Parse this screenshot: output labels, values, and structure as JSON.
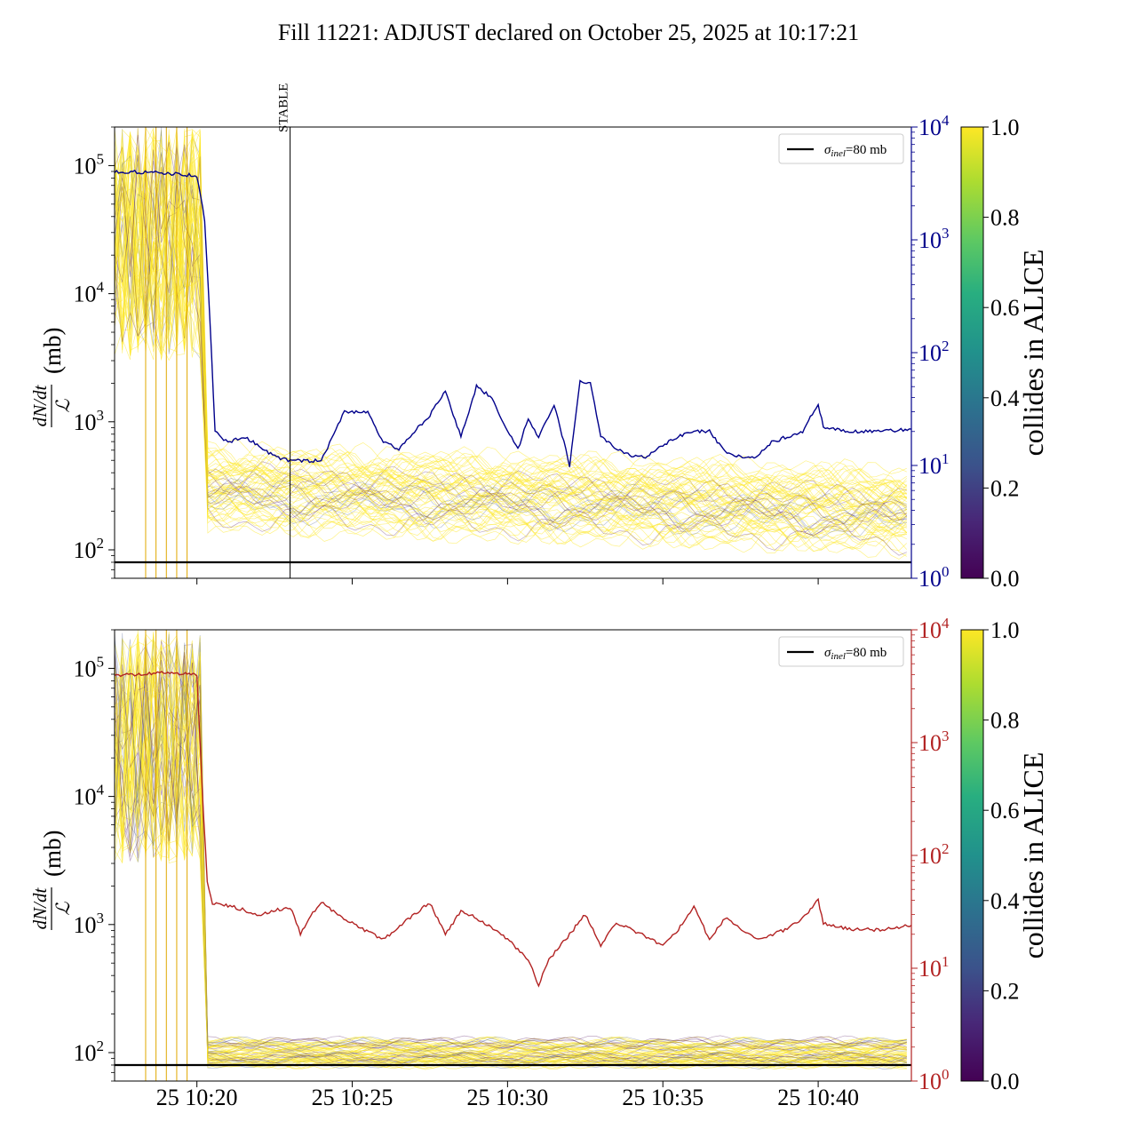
{
  "title": "Fill 11221: ADJUST declared on October 25, 2025 at 10:17:21",
  "colors": {
    "rate_line": "#00008b",
    "rate_line_bottom": "#b22222",
    "reference_line": "#000000",
    "axis_right_top": "#00008b",
    "axis_right_bottom": "#b22222",
    "viridis": [
      "#440154",
      "#3b528b",
      "#21918c",
      "#5ec962",
      "#fde725"
    ]
  },
  "chart_data": [
    {
      "type": "line",
      "panel": "top",
      "ylabel_num": "dN/dt",
      "ylabel_den": "ℒ",
      "ylabel_unit": "(mb)",
      "y_scale": "log",
      "ylim": [
        60,
        200000
      ],
      "y_ticks": [
        100,
        1000,
        10000,
        100000
      ],
      "y_tick_labels": [
        {
          "base": "10",
          "exp": "2"
        },
        {
          "base": "10",
          "exp": "3"
        },
        {
          "base": "10",
          "exp": "4"
        },
        {
          "base": "10",
          "exp": "5"
        }
      ],
      "x_range": [
        "2025-10-25 10:17:21",
        "2025-10-25 10:43:00"
      ],
      "x_ticks": [
        "10:20",
        "10:25",
        "10:30",
        "10:35",
        "10:40"
      ],
      "x_tick_labels_shown": false,
      "y2_scale": "log",
      "y2lim": [
        1,
        10000
      ],
      "y2_ticks": [
        1,
        10,
        100,
        1000,
        10000
      ],
      "y2_tick_labels": [
        {
          "base": "10",
          "exp": "0"
        },
        {
          "base": "10",
          "exp": "1"
        },
        {
          "base": "10",
          "exp": "2"
        },
        {
          "base": "10",
          "exp": "3"
        },
        {
          "base": "10",
          "exp": "4"
        }
      ],
      "reference": {
        "label_sym": "σ",
        "label_sub": "inel",
        "label_rest": "=80 mb",
        "value": 80
      },
      "legend_position": "upper right",
      "event_line": {
        "label": "STABLE",
        "time": "10:23:00"
      },
      "colorbar": {
        "label": "collides in ALICE",
        "ticks": [
          "0.0",
          "0.2",
          "0.4",
          "0.6",
          "0.8",
          "1.0"
        ],
        "range": [
          0,
          1
        ]
      },
      "bunch_band": {
        "spike_times": [
          "10:18:21",
          "10:18:41",
          "10:19:01",
          "10:19:21",
          "10:19:41"
        ],
        "early_level_range": [
          500,
          200000
        ],
        "late_level_median": [
          300,
          200
        ],
        "late_level_spread_factor": 2.2
      },
      "rate_series": {
        "axis": "y2",
        "x": [
          "10:17:21",
          "10:18:00",
          "10:19:00",
          "10:19:30",
          "10:20:00",
          "10:20:15",
          "10:20:25",
          "10:20:35",
          "10:21:00",
          "10:21:30",
          "10:22:00",
          "10:22:30",
          "10:23:00",
          "10:23:30",
          "10:24:00",
          "10:24:45",
          "10:25:00",
          "10:25:30",
          "10:26:00",
          "10:26:30",
          "10:27:00",
          "10:27:30",
          "10:28:00",
          "10:28:30",
          "10:29:00",
          "10:29:30",
          "10:30:00",
          "10:30:20",
          "10:30:40",
          "10:31:00",
          "10:31:30",
          "10:32:00",
          "10:32:20",
          "10:32:40",
          "10:33:00",
          "10:33:30",
          "10:34:00",
          "10:34:30",
          "10:35:00",
          "10:35:30",
          "10:36:00",
          "10:36:30",
          "10:37:00",
          "10:37:30",
          "10:38:00",
          "10:38:30",
          "10:39:00",
          "10:39:30",
          "10:40:00",
          "10:40:10",
          "10:41:00",
          "10:42:00",
          "10:43:00"
        ],
        "y": [
          4000,
          4000,
          3900,
          3800,
          3700,
          1500,
          200,
          20,
          16,
          18,
          15,
          12,
          11,
          11,
          11,
          30,
          30,
          30,
          16,
          14,
          20,
          28,
          45,
          18,
          50,
          40,
          20,
          14,
          26,
          18,
          35,
          10,
          55,
          55,
          18,
          14,
          12,
          12,
          15,
          18,
          20,
          20,
          13,
          12,
          12,
          16,
          18,
          20,
          35,
          22,
          20,
          20,
          21
        ]
      }
    },
    {
      "type": "line",
      "panel": "bottom",
      "ylabel_num": "dN/dt",
      "ylabel_den": "ℒ",
      "ylabel_unit": "(mb)",
      "y_scale": "log",
      "ylim": [
        60,
        200000
      ],
      "y_ticks": [
        100,
        1000,
        10000,
        100000
      ],
      "y_tick_labels": [
        {
          "base": "10",
          "exp": "2"
        },
        {
          "base": "10",
          "exp": "3"
        },
        {
          "base": "10",
          "exp": "4"
        },
        {
          "base": "10",
          "exp": "5"
        }
      ],
      "x_range": [
        "2025-10-25 10:17:21",
        "2025-10-25 10:43:00"
      ],
      "x_ticks": [
        "10:20",
        "10:25",
        "10:30",
        "10:35",
        "10:40"
      ],
      "x_tick_labels": [
        "25 10:20",
        "25 10:25",
        "25 10:30",
        "25 10:35",
        "25 10:40"
      ],
      "y2_scale": "log",
      "y2lim": [
        1,
        10000
      ],
      "y2_ticks": [
        1,
        10,
        100,
        1000,
        10000
      ],
      "y2_tick_labels": [
        {
          "base": "10",
          "exp": "0"
        },
        {
          "base": "10",
          "exp": "1"
        },
        {
          "base": "10",
          "exp": "2"
        },
        {
          "base": "10",
          "exp": "3"
        },
        {
          "base": "10",
          "exp": "4"
        }
      ],
      "reference": {
        "label_sym": "σ",
        "label_sub": "inel",
        "label_rest": "=80 mb",
        "value": 80
      },
      "legend_position": "upper right",
      "colorbar": {
        "label": "collides in ALICE",
        "ticks": [
          "0.0",
          "0.2",
          "0.4",
          "0.6",
          "0.8",
          "1.0"
        ],
        "range": [
          0,
          1
        ]
      },
      "bunch_band": {
        "spike_times": [
          "10:18:21",
          "10:18:41",
          "10:19:01",
          "10:19:21",
          "10:19:41"
        ],
        "early_level_range": [
          500,
          200000
        ],
        "late_level_median": [
          100,
          100
        ],
        "late_level_spread_factor": 1.3
      },
      "rate_series": {
        "axis": "y2",
        "x": [
          "10:17:21",
          "10:18:00",
          "10:19:00",
          "10:19:30",
          "10:20:00",
          "10:20:10",
          "10:20:20",
          "10:20:30",
          "10:21:00",
          "10:22:00",
          "10:23:00",
          "10:23:20",
          "10:23:40",
          "10:24:00",
          "10:25:00",
          "10:26:00",
          "10:27:00",
          "10:27:30",
          "10:28:00",
          "10:28:30",
          "10:29:00",
          "10:30:00",
          "10:30:40",
          "10:31:00",
          "10:31:20",
          "10:32:00",
          "10:32:30",
          "10:33:00",
          "10:33:30",
          "10:34:00",
          "10:35:00",
          "10:35:30",
          "10:36:00",
          "10:36:30",
          "10:37:00",
          "10:38:00",
          "10:39:00",
          "10:39:30",
          "10:40:00",
          "10:40:10",
          "10:41:00",
          "10:42:00",
          "10:43:00"
        ],
        "y": [
          4000,
          4000,
          4200,
          4100,
          4000,
          400,
          60,
          38,
          36,
          30,
          35,
          20,
          30,
          38,
          25,
          18,
          30,
          38,
          20,
          32,
          28,
          18,
          12,
          7,
          12,
          20,
          30,
          16,
          25,
          22,
          16,
          22,
          35,
          18,
          28,
          18,
          22,
          28,
          40,
          25,
          22,
          22,
          24
        ]
      }
    }
  ]
}
